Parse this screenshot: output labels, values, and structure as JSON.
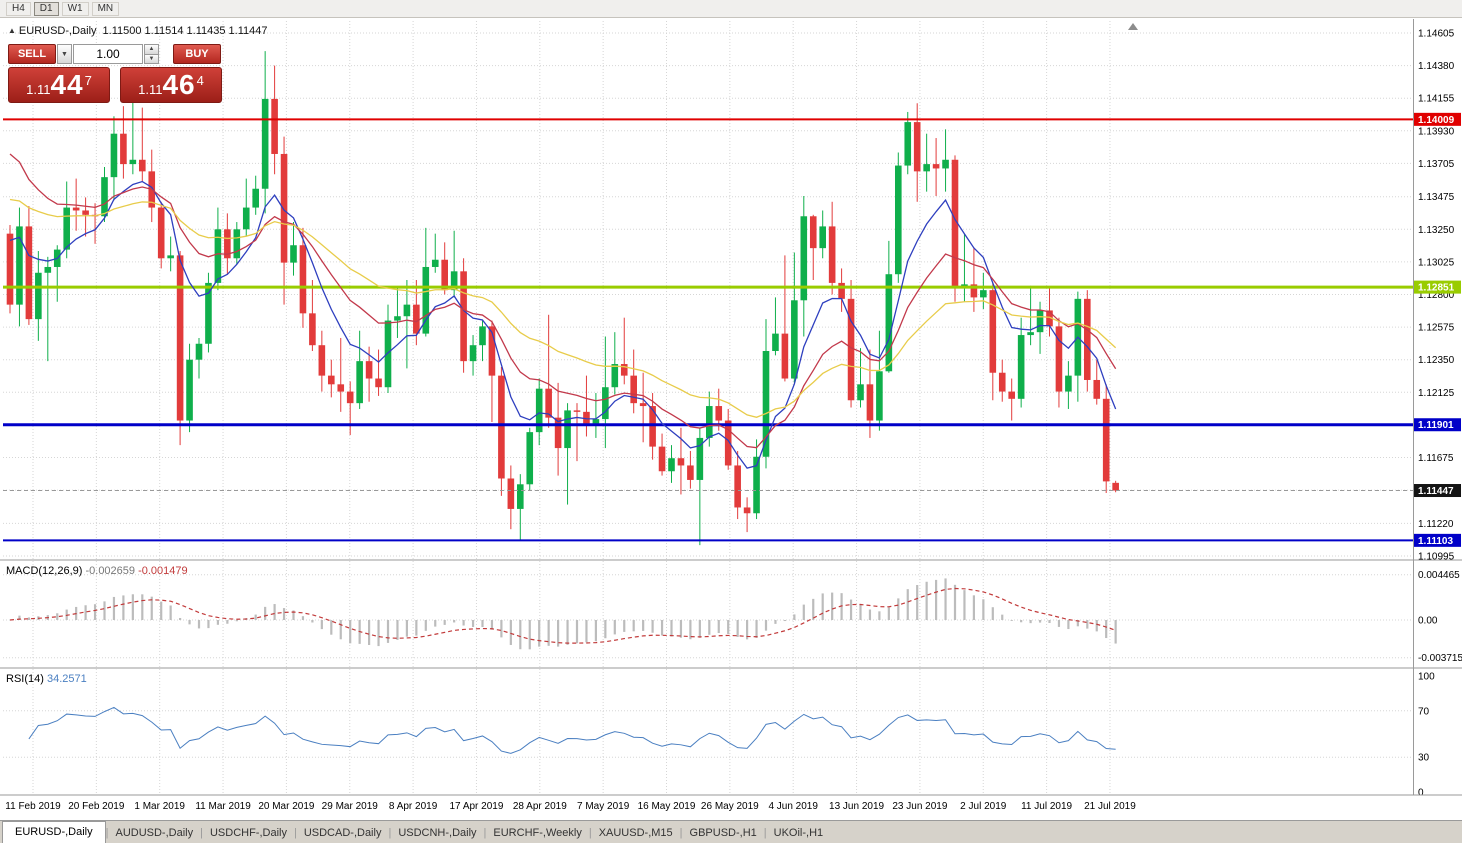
{
  "toolbar": {
    "timeframes": [
      {
        "label": "H4",
        "active": false
      },
      {
        "label": "D1",
        "active": true
      },
      {
        "label": "W1",
        "active": false
      },
      {
        "label": "MN",
        "active": false
      }
    ]
  },
  "icons": {
    "panel_toggle": "▲",
    "chevron_down": "▼",
    "spin_up": "▲",
    "spin_down": "▼"
  },
  "header": {
    "title": "EURUSD-,Daily",
    "ohlc": "1.11500 1.11514 1.11435 1.11447"
  },
  "trade_panel": {
    "sell_label": "SELL",
    "buy_label": "BUY",
    "volume": "1.00",
    "sell_quote": {
      "prefix": "1.11",
      "pips": "44",
      "pip_sup": "7"
    },
    "buy_quote": {
      "prefix": "1.11",
      "pips": "46",
      "pip_sup": "4"
    }
  },
  "tabs_separator": "|",
  "tabs": [
    {
      "label": "EURUSD-,Daily",
      "active": true
    },
    {
      "label": "AUDUSD-,Daily",
      "active": false
    },
    {
      "label": "USDCHF-,Daily",
      "active": false
    },
    {
      "label": "USDCAD-,Daily",
      "active": false
    },
    {
      "label": "USDCNH-,Daily",
      "active": false
    },
    {
      "label": "EURCHF-,Weekly",
      "active": false
    },
    {
      "label": "XAUUSD-,M15",
      "active": false
    },
    {
      "label": "GBPUSD-,H1",
      "active": false
    },
    {
      "label": "UKOil-,H1",
      "active": false
    }
  ],
  "chart_data": {
    "type": "candlestick",
    "symbol": "EURUSD",
    "timeframe": "Daily",
    "price_max": 1.14605,
    "price_min": 1.10995,
    "y_tick_labels_main": [
      "1.14605",
      "1.14380",
      "1.14155",
      "1.13930",
      "1.13705",
      "1.13475",
      "1.13250",
      "1.13025",
      "1.12800",
      "1.12575",
      "1.12350",
      "1.12125",
      "1.11900",
      "1.11675",
      "1.11450",
      "1.11220",
      "1.10995"
    ],
    "x_tick_labels": [
      "11 Feb 2019",
      "20 Feb 2019",
      "1 Mar 2019",
      "11 Mar 2019",
      "20 Mar 2019",
      "29 Mar 2019",
      "8 Apr 2019",
      "17 Apr 2019",
      "28 Apr 2019",
      "7 May 2019",
      "16 May 2019",
      "26 May 2019",
      "4 Jun 2019",
      "13 Jun 2019",
      "23 Jun 2019",
      "2 Jul 2019",
      "11 Jul 2019",
      "21 Jul 2019"
    ],
    "hlines": [
      {
        "price": 1.14009,
        "label": "1.14009",
        "color": "#e00000",
        "width": 2
      },
      {
        "price": 1.12851,
        "label": "1.12851",
        "color": "#99cc00",
        "width": 3
      },
      {
        "price": 1.11901,
        "label": "1.11901",
        "color": "#0000c8",
        "width": 3
      },
      {
        "price": 1.11103,
        "label": "1.11103",
        "color": "#0000c8",
        "width": 2
      }
    ],
    "bid": {
      "price": 1.11447,
      "label": "1.11447",
      "tag_color": "#141414"
    },
    "moving_averages": [
      {
        "period": 8,
        "seed": 1.133,
        "color": "#2e3fbf"
      },
      {
        "period": 17,
        "seed": 1.139,
        "color": "#c2394b"
      },
      {
        "period": 34,
        "seed": 1.135,
        "color": "#e8cc4a"
      }
    ],
    "macd": {
      "name": "MACD(12,26,9)",
      "value": "-0.002659",
      "signal_value": "-0.001479",
      "fast": 12,
      "slow": 26,
      "signal_period": 9,
      "y_tick_labels": [
        "0.004465",
        "0.00",
        "-0.003715"
      ],
      "y_tick_values": [
        0.004465,
        0,
        -0.003715
      ],
      "hist_color": "#bcbcbc",
      "signal_color": "#c23b3b"
    },
    "rsi": {
      "name": "RSI(14)",
      "value": "34.2571",
      "period": 14,
      "y_tick_labels": [
        "100",
        "70",
        "30",
        "0"
      ],
      "levels": [
        70,
        30
      ],
      "color": "#4a7fc1"
    },
    "colors": {
      "bull": "#0faf4b",
      "bear": "#e23b3b",
      "grid": "#d6d6d6",
      "separator": "#9a9a9a",
      "axis_text": "#000000",
      "bid_line": "#999999"
    },
    "candles": [
      [
        1.1322,
        1.1328,
        1.1267,
        1.1273
      ],
      [
        1.1273,
        1.134,
        1.1258,
        1.1327
      ],
      [
        1.1327,
        1.1341,
        1.1259,
        1.1263
      ],
      [
        1.1263,
        1.131,
        1.1248,
        1.1295
      ],
      [
        1.1295,
        1.1306,
        1.1234,
        1.1299
      ],
      [
        1.1299,
        1.1314,
        1.1275,
        1.1311
      ],
      [
        1.1311,
        1.1358,
        1.1305,
        1.134
      ],
      [
        1.134,
        1.136,
        1.1324,
        1.1338
      ],
      [
        1.1338,
        1.1347,
        1.132,
        1.1335
      ],
      [
        1.1335,
        1.1343,
        1.1315,
        1.1334
      ],
      [
        1.1334,
        1.1368,
        1.133,
        1.1361
      ],
      [
        1.1361,
        1.1403,
        1.1345,
        1.1391
      ],
      [
        1.1391,
        1.141,
        1.136,
        1.137
      ],
      [
        1.137,
        1.1421,
        1.1363,
        1.1373
      ],
      [
        1.1373,
        1.1409,
        1.1358,
        1.1365
      ],
      [
        1.1365,
        1.138,
        1.133,
        1.134
      ],
      [
        1.134,
        1.1344,
        1.1298,
        1.1305
      ],
      [
        1.1305,
        1.132,
        1.1296,
        1.1307
      ],
      [
        1.1307,
        1.131,
        1.1176,
        1.1193
      ],
      [
        1.1193,
        1.1246,
        1.1185,
        1.1235
      ],
      [
        1.1235,
        1.125,
        1.1222,
        1.1246
      ],
      [
        1.1246,
        1.1295,
        1.124,
        1.1288
      ],
      [
        1.1288,
        1.134,
        1.1283,
        1.1325
      ],
      [
        1.1325,
        1.1336,
        1.1294,
        1.1305
      ],
      [
        1.1305,
        1.133,
        1.1301,
        1.1325
      ],
      [
        1.1325,
        1.136,
        1.132,
        1.134
      ],
      [
        1.134,
        1.1362,
        1.1335,
        1.1353
      ],
      [
        1.1353,
        1.1448,
        1.1336,
        1.1415
      ],
      [
        1.1415,
        1.1438,
        1.1363,
        1.1377
      ],
      [
        1.1377,
        1.1389,
        1.1273,
        1.1302
      ],
      [
        1.1302,
        1.133,
        1.1293,
        1.1314
      ],
      [
        1.1314,
        1.1326,
        1.1257,
        1.1267
      ],
      [
        1.1267,
        1.129,
        1.1241,
        1.1245
      ],
      [
        1.1245,
        1.1255,
        1.1213,
        1.1224
      ],
      [
        1.1224,
        1.1235,
        1.1209,
        1.1218
      ],
      [
        1.1218,
        1.125,
        1.1199,
        1.1213
      ],
      [
        1.1213,
        1.122,
        1.1183,
        1.1205
      ],
      [
        1.1205,
        1.1255,
        1.1201,
        1.1234
      ],
      [
        1.1234,
        1.1244,
        1.1206,
        1.1222
      ],
      [
        1.1222,
        1.1242,
        1.121,
        1.1216
      ],
      [
        1.1216,
        1.1273,
        1.1212,
        1.1262
      ],
      [
        1.1262,
        1.1285,
        1.125,
        1.1265
      ],
      [
        1.1265,
        1.129,
        1.1229,
        1.1273
      ],
      [
        1.1273,
        1.129,
        1.1245,
        1.1253
      ],
      [
        1.1253,
        1.1326,
        1.1251,
        1.1299
      ],
      [
        1.1299,
        1.1322,
        1.1295,
        1.1304
      ],
      [
        1.1304,
        1.1316,
        1.128,
        1.1283
      ],
      [
        1.1283,
        1.1324,
        1.1278,
        1.1296
      ],
      [
        1.1296,
        1.1305,
        1.1226,
        1.1234
      ],
      [
        1.1234,
        1.1252,
        1.1224,
        1.1245
      ],
      [
        1.1245,
        1.1262,
        1.1234,
        1.1258
      ],
      [
        1.1258,
        1.1262,
        1.1192,
        1.1224
      ],
      [
        1.1224,
        1.123,
        1.1141,
        1.1153
      ],
      [
        1.1153,
        1.1162,
        1.1118,
        1.1132
      ],
      [
        1.1132,
        1.1156,
        1.111,
        1.1149
      ],
      [
        1.1149,
        1.1188,
        1.1145,
        1.1185
      ],
      [
        1.1185,
        1.1222,
        1.1176,
        1.1215
      ],
      [
        1.1215,
        1.1266,
        1.1188,
        1.1195
      ],
      [
        1.1195,
        1.1219,
        1.1155,
        1.1174
      ],
      [
        1.1174,
        1.1205,
        1.1135,
        1.12
      ],
      [
        1.12,
        1.1205,
        1.1165,
        1.1199
      ],
      [
        1.1199,
        1.1224,
        1.1182,
        1.1191
      ],
      [
        1.1191,
        1.1212,
        1.1181,
        1.1194
      ],
      [
        1.1194,
        1.1251,
        1.1174,
        1.1216
      ],
      [
        1.1216,
        1.1254,
        1.1211,
        1.1232
      ],
      [
        1.1232,
        1.1264,
        1.1218,
        1.1224
      ],
      [
        1.1224,
        1.1242,
        1.1198,
        1.1205
      ],
      [
        1.1205,
        1.1226,
        1.1178,
        1.1203
      ],
      [
        1.1203,
        1.1212,
        1.1166,
        1.1175
      ],
      [
        1.1175,
        1.1184,
        1.1155,
        1.1158
      ],
      [
        1.1158,
        1.1176,
        1.115,
        1.1167
      ],
      [
        1.1167,
        1.1188,
        1.1142,
        1.1162
      ],
      [
        1.1162,
        1.1172,
        1.1146,
        1.1152
      ],
      [
        1.1152,
        1.1188,
        1.1107,
        1.1181
      ],
      [
        1.1181,
        1.1213,
        1.1175,
        1.1203
      ],
      [
        1.1203,
        1.1215,
        1.1186,
        1.1193
      ],
      [
        1.1193,
        1.1201,
        1.1159,
        1.1162
      ],
      [
        1.1162,
        1.1172,
        1.1125,
        1.1133
      ],
      [
        1.1133,
        1.114,
        1.1116,
        1.1129
      ],
      [
        1.1129,
        1.118,
        1.1125,
        1.1168
      ],
      [
        1.1168,
        1.1263,
        1.116,
        1.1241
      ],
      [
        1.1241,
        1.1278,
        1.1238,
        1.1253
      ],
      [
        1.1253,
        1.1307,
        1.122,
        1.1222
      ],
      [
        1.1222,
        1.1309,
        1.1219,
        1.1276
      ],
      [
        1.1276,
        1.1348,
        1.1251,
        1.1334
      ],
      [
        1.1334,
        1.1335,
        1.129,
        1.1312
      ],
      [
        1.1312,
        1.1338,
        1.1305,
        1.1327
      ],
      [
        1.1327,
        1.1344,
        1.128,
        1.1288
      ],
      [
        1.1288,
        1.1298,
        1.1268,
        1.1277
      ],
      [
        1.1277,
        1.129,
        1.1202,
        1.1207
      ],
      [
        1.1207,
        1.1243,
        1.1202,
        1.1218
      ],
      [
        1.1218,
        1.1242,
        1.1181,
        1.1193
      ],
      [
        1.1193,
        1.1255,
        1.1186,
        1.1227
      ],
      [
        1.1227,
        1.1317,
        1.1226,
        1.1294
      ],
      [
        1.1294,
        1.1378,
        1.1288,
        1.1369
      ],
      [
        1.1369,
        1.1406,
        1.1363,
        1.1399
      ],
      [
        1.1399,
        1.1412,
        1.1344,
        1.1365
      ],
      [
        1.1365,
        1.1391,
        1.1351,
        1.137
      ],
      [
        1.137,
        1.1388,
        1.1348,
        1.1367
      ],
      [
        1.1367,
        1.1394,
        1.1351,
        1.1373
      ],
      [
        1.1373,
        1.1376,
        1.1275,
        1.1285
      ],
      [
        1.1285,
        1.1322,
        1.1275,
        1.1287
      ],
      [
        1.1287,
        1.1312,
        1.1268,
        1.1278
      ],
      [
        1.1278,
        1.1295,
        1.127,
        1.1283
      ],
      [
        1.1283,
        1.1288,
        1.1207,
        1.1226
      ],
      [
        1.1226,
        1.1235,
        1.1206,
        1.1213
      ],
      [
        1.1213,
        1.1222,
        1.1193,
        1.1208
      ],
      [
        1.1208,
        1.1264,
        1.1202,
        1.1252
      ],
      [
        1.1252,
        1.1286,
        1.1245,
        1.1254
      ],
      [
        1.1254,
        1.1275,
        1.1239,
        1.1269
      ],
      [
        1.1269,
        1.1285,
        1.1251,
        1.1258
      ],
      [
        1.1258,
        1.1264,
        1.1202,
        1.1213
      ],
      [
        1.1213,
        1.1234,
        1.1201,
        1.1224
      ],
      [
        1.1224,
        1.1282,
        1.1206,
        1.1277
      ],
      [
        1.1277,
        1.1283,
        1.1213,
        1.1221
      ],
      [
        1.1221,
        1.1235,
        1.1204,
        1.1208
      ],
      [
        1.1208,
        1.1218,
        1.1143,
        1.1151
      ],
      [
        1.115,
        1.11514,
        1.11435,
        1.11447
      ]
    ]
  }
}
